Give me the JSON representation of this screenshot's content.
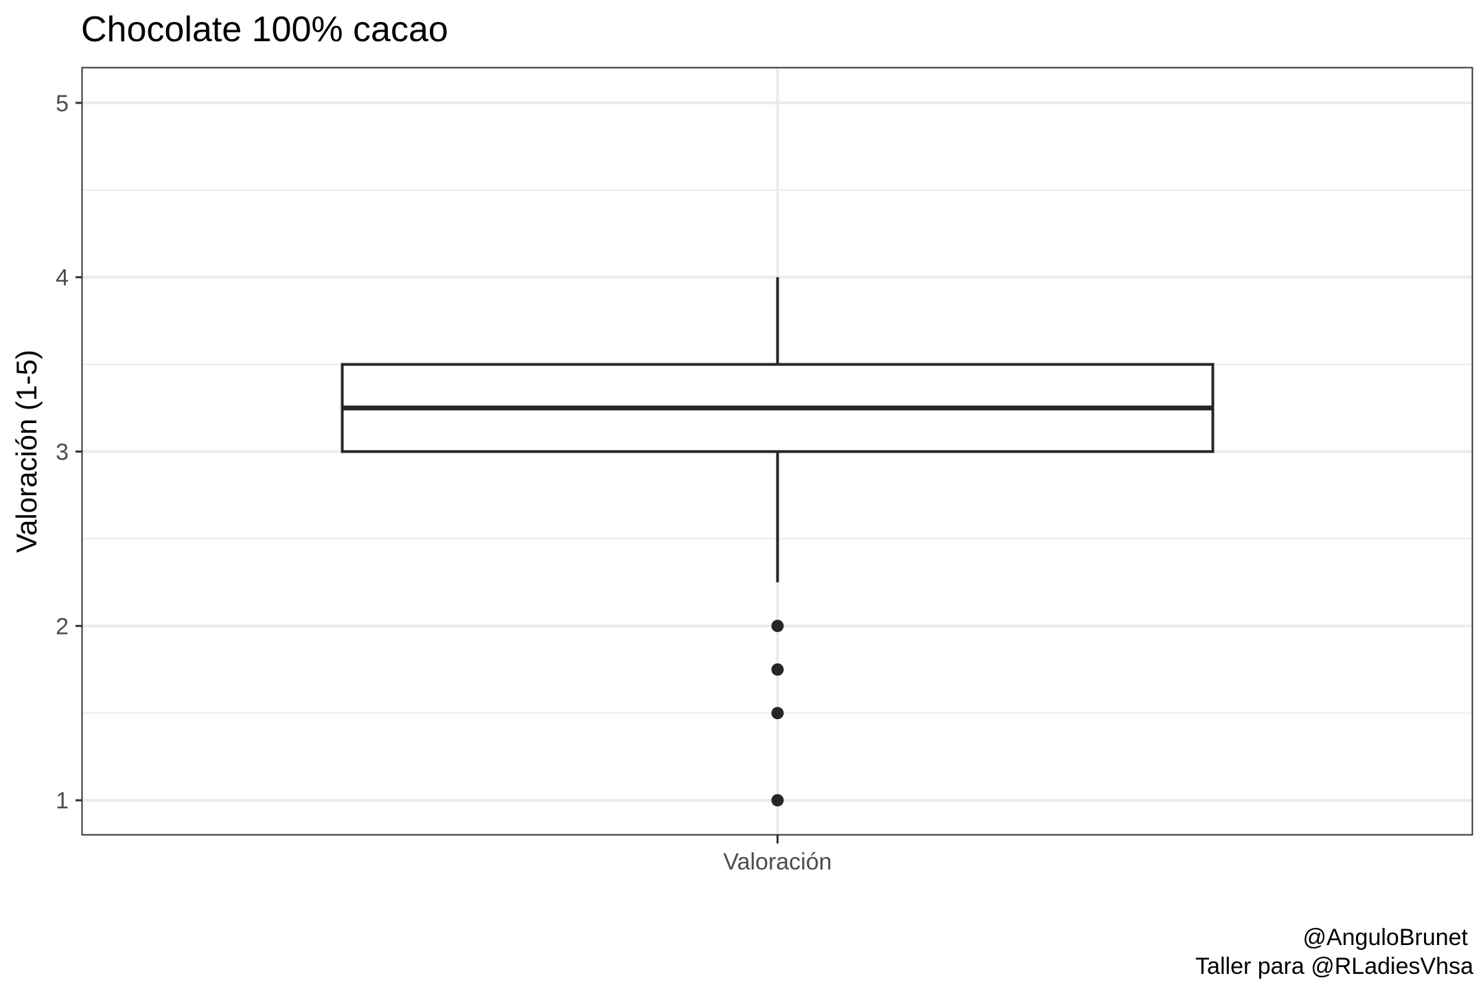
{
  "chart_data": {
    "type": "boxplot",
    "title": "Chocolate 100% cacao",
    "ylabel": "Valoración (1-5)",
    "xlabel": "",
    "categories": [
      "Valoración"
    ],
    "ylim": [
      0.8,
      5.2
    ],
    "y_ticks": [
      "1",
      "2",
      "3",
      "4",
      "5"
    ],
    "y_tick_values": [
      1,
      2,
      3,
      4,
      5
    ],
    "y_minor_values": [
      1.5,
      2.5,
      3.5,
      4.5
    ],
    "grid": true,
    "box": {
      "lower_whisker": 2.25,
      "q1": 3,
      "median": 3.25,
      "q3": 3.5,
      "upper_whisker": 4
    },
    "outliers": [
      2,
      1.75,
      1.5,
      1
    ],
    "colors": {
      "box": "#262626",
      "grid": "#ebebeb",
      "panel_border": "#333333"
    }
  },
  "caption": [
    "@AnguloBrunet",
    "Taller para @RLadiesVhsa"
  ]
}
